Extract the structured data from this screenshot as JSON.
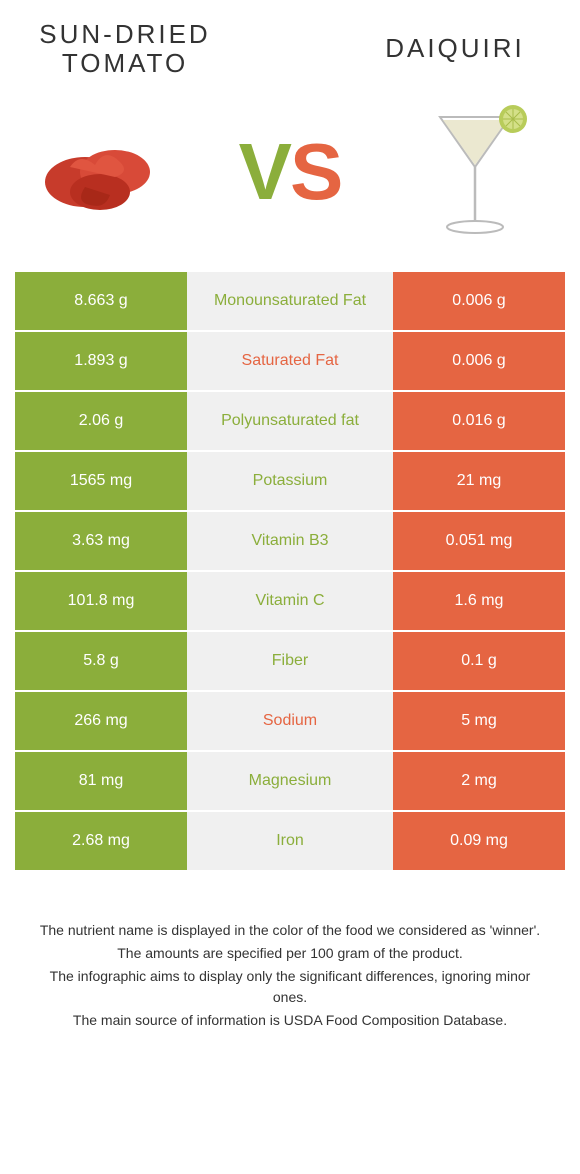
{
  "header": {
    "left_title_line1": "Sun-dried",
    "left_title_line2": "Tomato",
    "right_title": "Daiquiri"
  },
  "vs": {
    "v": "V",
    "s": "S"
  },
  "colors": {
    "green": "#8BAE3B",
    "orange": "#E56542",
    "grey": "#F0F0F0"
  },
  "rows": [
    {
      "left": "8.663 g",
      "label": "Monounsaturated Fat",
      "right": "0.006 g",
      "winner": "green"
    },
    {
      "left": "1.893 g",
      "label": "Saturated Fat",
      "right": "0.006 g",
      "winner": "orange"
    },
    {
      "left": "2.06 g",
      "label": "Polyunsaturated fat",
      "right": "0.016 g",
      "winner": "green"
    },
    {
      "left": "1565 mg",
      "label": "Potassium",
      "right": "21 mg",
      "winner": "green"
    },
    {
      "left": "3.63 mg",
      "label": "Vitamin B3",
      "right": "0.051 mg",
      "winner": "green"
    },
    {
      "left": "101.8 mg",
      "label": "Vitamin C",
      "right": "1.6 mg",
      "winner": "green"
    },
    {
      "left": "5.8 g",
      "label": "Fiber",
      "right": "0.1 g",
      "winner": "green"
    },
    {
      "left": "266 mg",
      "label": "Sodium",
      "right": "5 mg",
      "winner": "orange"
    },
    {
      "left": "81 mg",
      "label": "Magnesium",
      "right": "2 mg",
      "winner": "green"
    },
    {
      "left": "2.68 mg",
      "label": "Iron",
      "right": "0.09 mg",
      "winner": "green"
    }
  ],
  "footnotes": [
    "The nutrient name is displayed in the color of the food we considered as 'winner'.",
    "The amounts are specified per 100 gram of the product.",
    "The infographic aims to display only the significant differences, ignoring minor ones.",
    "The main source of information is USDA Food Composition Database."
  ]
}
